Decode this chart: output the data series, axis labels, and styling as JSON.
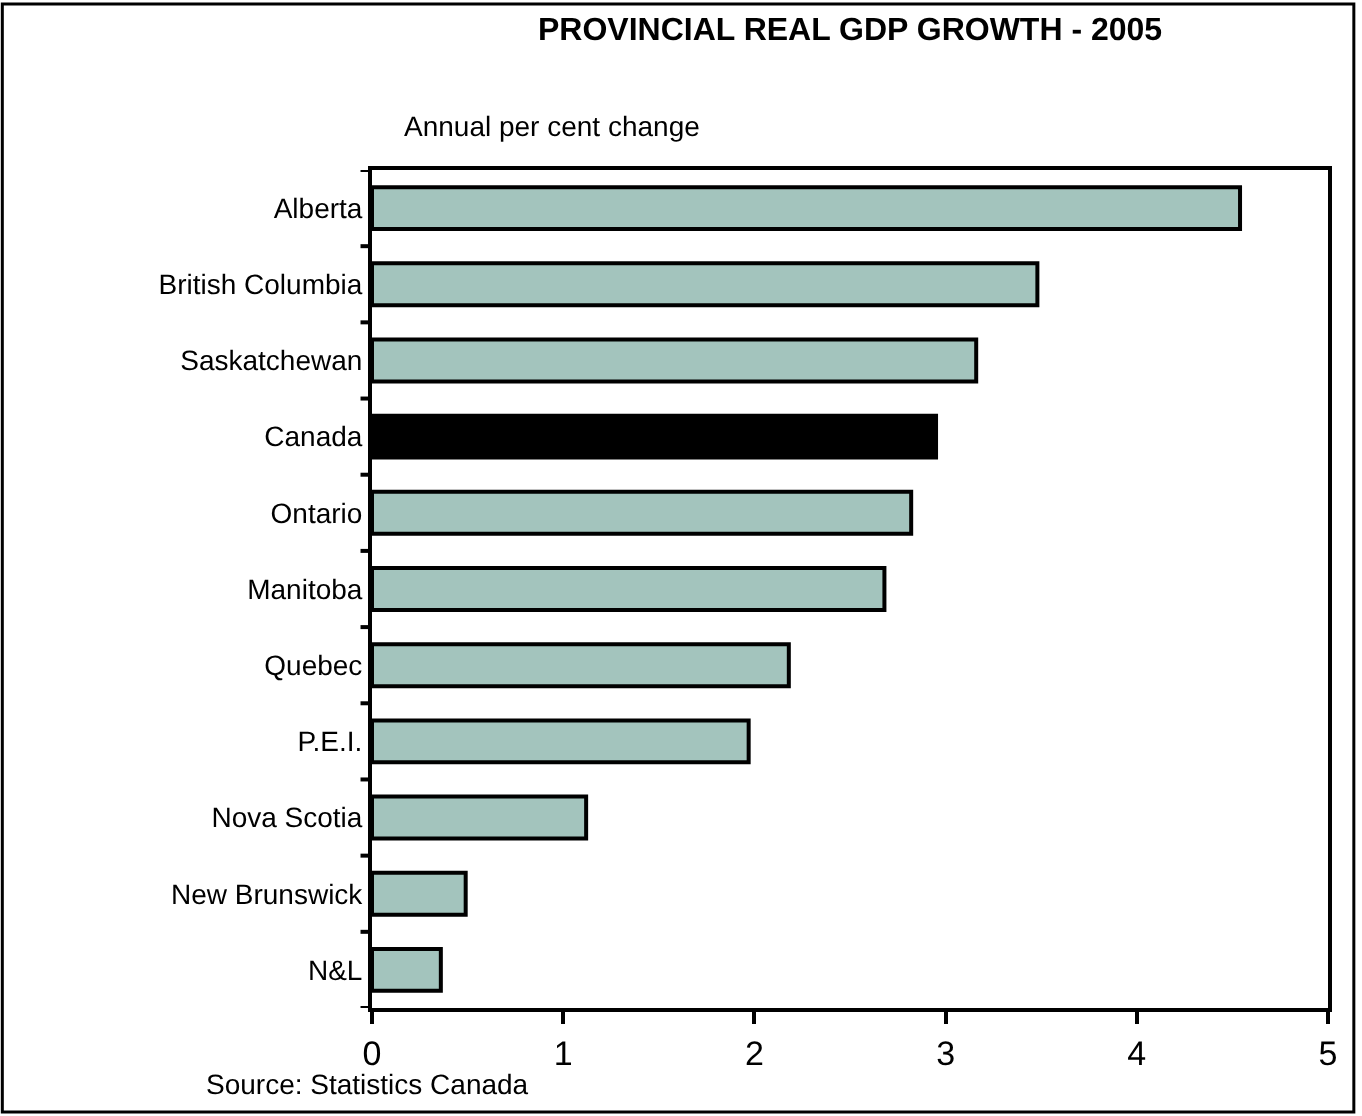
{
  "chart_data": {
    "type": "bar",
    "orientation": "horizontal",
    "title": "PROVINCIAL REAL GDP GROWTH - 2005",
    "subtitle": "Annual per cent change",
    "categories": [
      "Alberta",
      "British Columbia",
      "Saskatchewan",
      "Canada",
      "Ontario",
      "Manitoba",
      "Quebec",
      "P.E.I.",
      "Nova Scotia",
      "New Brunswick",
      "N&L"
    ],
    "values": [
      4.54,
      3.48,
      3.16,
      2.95,
      2.82,
      2.68,
      2.18,
      1.97,
      1.12,
      0.49,
      0.36
    ],
    "colors": [
      "#a3c4bd",
      "#a3c4bd",
      "#a3c4bd",
      "#000000",
      "#a3c4bd",
      "#a3c4bd",
      "#a3c4bd",
      "#a3c4bd",
      "#a3c4bd",
      "#a3c4bd",
      "#a3c4bd"
    ],
    "xlim": [
      0,
      5
    ],
    "xticks": [
      0,
      1,
      2,
      3,
      4,
      5
    ],
    "annotations": [
      "Source: Statistics Canada"
    ]
  }
}
